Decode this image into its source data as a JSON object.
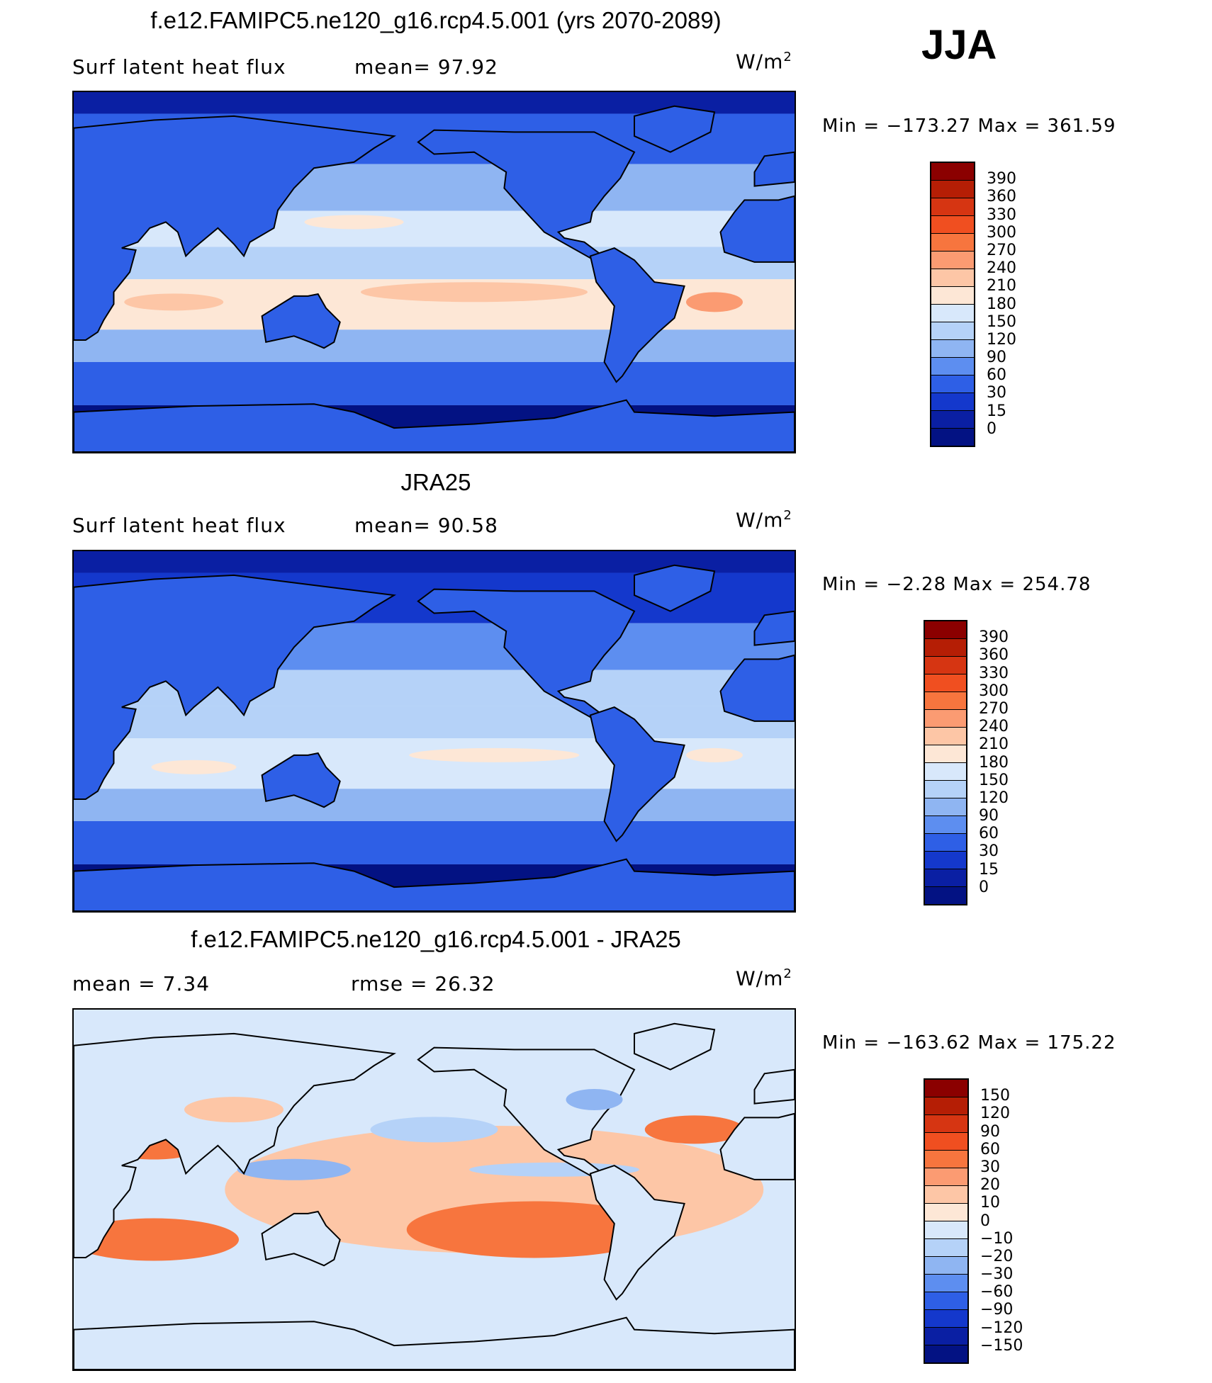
{
  "season": "JJA",
  "panels": [
    {
      "title": "f.e12.FAMIPC5.ne120_g16.rcp4.5.001 (yrs 2070-2089)",
      "left_text": "Surf latent heat flux",
      "mid_text": "mean=  97.92",
      "units_base": "W/m",
      "units_exp": "2",
      "minmax": "Min  =  −173.27  Max  =  361.59",
      "map_style": "model",
      "colorbar_labels": [
        "390",
        "360",
        "330",
        "300",
        "270",
        "240",
        "210",
        "180",
        "150",
        "120",
        "90",
        "60",
        "30",
        "15",
        "0"
      ],
      "colorbar_colors": [
        "#8b0000",
        "#b51e05",
        "#d63512",
        "#f04f20",
        "#f7753e",
        "#fb9b72",
        "#fdc6a6",
        "#fde7d6",
        "#d8e8fb",
        "#b5d2f8",
        "#8fb5f2",
        "#5d8ef0",
        "#2e5fe6",
        "#1438cc",
        "#0a1fa3",
        "#031283"
      ]
    },
    {
      "title": "JRA25",
      "left_text": "Surf latent heat flux",
      "mid_text": "mean=  90.58",
      "units_base": "W/m",
      "units_exp": "2",
      "minmax": "Min  =   −2.28  Max  =  254.78",
      "map_style": "obs",
      "colorbar_labels": [
        "390",
        "360",
        "330",
        "300",
        "270",
        "240",
        "210",
        "180",
        "150",
        "120",
        "90",
        "60",
        "30",
        "15",
        "0"
      ],
      "colorbar_colors": [
        "#8b0000",
        "#b51e05",
        "#d63512",
        "#f04f20",
        "#f7753e",
        "#fb9b72",
        "#fdc6a6",
        "#fde7d6",
        "#d8e8fb",
        "#b5d2f8",
        "#8fb5f2",
        "#5d8ef0",
        "#2e5fe6",
        "#1438cc",
        "#0a1fa3",
        "#031283"
      ]
    },
    {
      "title": "f.e12.FAMIPC5.ne120_g16.rcp4.5.001 - JRA25",
      "left_text": "mean  =    7.34",
      "mid_text": "rmse  =   26.32",
      "units_base": "W/m",
      "units_exp": "2",
      "minmax": "Min  =  −163.62  Max  =  175.22",
      "map_style": "diff",
      "colorbar_labels": [
        "150",
        "120",
        "90",
        "60",
        "30",
        "20",
        "10",
        "0",
        "−10",
        "−20",
        "−30",
        "−60",
        "−90",
        "−120",
        "−150"
      ],
      "colorbar_colors": [
        "#8b0000",
        "#b51e05",
        "#d63512",
        "#f04f20",
        "#f7753e",
        "#fb9b72",
        "#fdc6a6",
        "#fde7d6",
        "#d8e8fb",
        "#b5d2f8",
        "#8fb5f2",
        "#5d8ef0",
        "#2e5fe6",
        "#1438cc",
        "#0a1fa3",
        "#031283"
      ]
    }
  ]
}
